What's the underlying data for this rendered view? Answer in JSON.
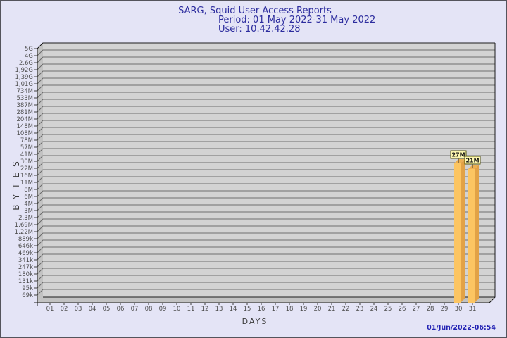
{
  "page": {
    "background_color": "#e4e4f6",
    "border_color": "#54545c"
  },
  "chart_data": {
    "type": "bar",
    "title": "SARG, Squid User Access Reports",
    "subtitle_period": "Period: 01 May 2022-31 May 2022",
    "subtitle_user": "User: 10.42.42.28",
    "xlabel": "DAYS",
    "ylabel": "BYTES",
    "scale": "log",
    "legend": "none",
    "x_tick_labels": [
      "01",
      "02",
      "03",
      "04",
      "05",
      "06",
      "07",
      "08",
      "09",
      "10",
      "11",
      "12",
      "13",
      "14",
      "15",
      "16",
      "17",
      "18",
      "19",
      "20",
      "21",
      "22",
      "23",
      "24",
      "25",
      "26",
      "27",
      "28",
      "29",
      "30",
      "31"
    ],
    "y_tick_labels": [
      "5G",
      "4G",
      "2,6G",
      "1,92G",
      "1,39G",
      "1,01G",
      "734M",
      "533M",
      "387M",
      "281M",
      "204M",
      "148M",
      "108M",
      "78M",
      "57M",
      "41M",
      "30M",
      "22M",
      "16M",
      "11M",
      "8M",
      "6M",
      "4M",
      "3M",
      "2,3M",
      "1,69M",
      "1,22M",
      "889k",
      "646k",
      "469k",
      "341k",
      "247k",
      "180k",
      "131k",
      "95k",
      "69k"
    ],
    "bars": [
      {
        "day": "30",
        "label": "27M",
        "value_bytes": 27000000
      },
      {
        "day": "31",
        "label": "21M",
        "value_bytes": 21000000
      }
    ],
    "footer_timestamp": "01/Jun/2022-06:54",
    "colors": {
      "title_text": "#2c2c9e",
      "timestamp_text": "#2323b4",
      "plot_bg": "#d3d3d3",
      "wall_fill": "#c2c2c2",
      "grid_line": "#6f6f6f",
      "frame_line": "#1c1c1c",
      "tick_mark": "#3f3f3f",
      "tick_text": "#4d4d4d",
      "bar_front": "#fcc562",
      "bar_side": "#e2a246",
      "bar_top": "#edb052",
      "value_box_bg": "#fcf6af",
      "value_box_border": "#55550f",
      "value_text": "#111111"
    }
  }
}
